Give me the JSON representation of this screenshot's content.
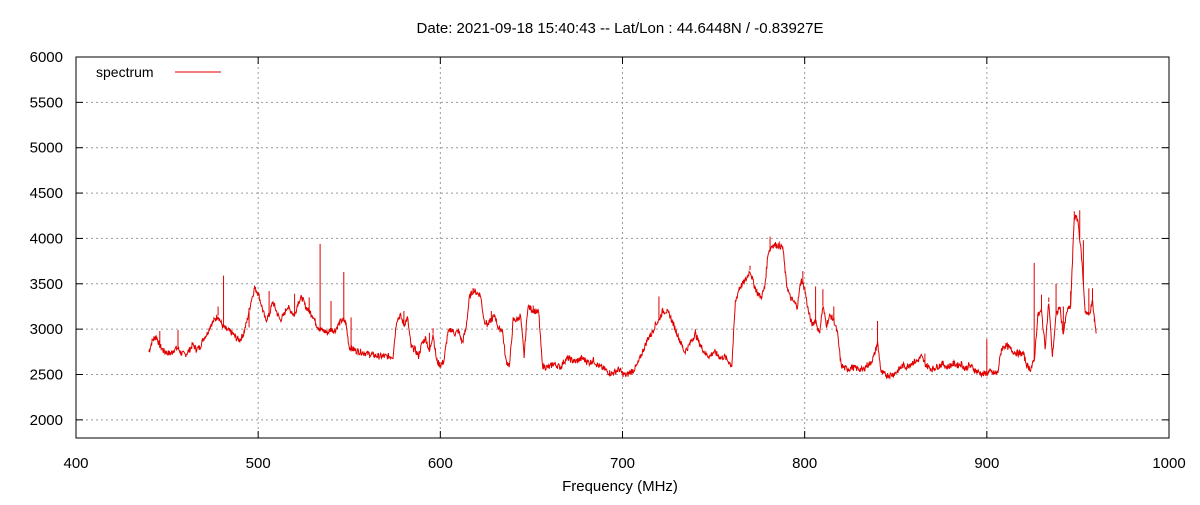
{
  "chart_data": {
    "type": "line",
    "title": "Date: 2021-09-18 15:40:43  --  Lat/Lon : 44.6448N / -0.83927E",
    "xlabel": "Frequency (MHz)",
    "ylabel": "",
    "xlim": [
      400,
      1000
    ],
    "ylim": [
      1800,
      6000
    ],
    "xticks": [
      400,
      500,
      600,
      700,
      800,
      900,
      1000
    ],
    "yticks": [
      2000,
      2500,
      3000,
      3500,
      4000,
      4500,
      5000,
      5500,
      6000
    ],
    "grid": true,
    "grid_style": "dotted",
    "legend_position": "top-left",
    "series": [
      {
        "name": "spectrum",
        "color": "#e00000",
        "points": [
          [
            440,
            2750
          ],
          [
            442,
            2880
          ],
          [
            444,
            2920
          ],
          [
            446,
            2820
          ],
          [
            448,
            2760
          ],
          [
            450,
            2740
          ],
          [
            452,
            2730
          ],
          [
            454,
            2780
          ],
          [
            456,
            2790
          ],
          [
            458,
            2730
          ],
          [
            460,
            2720
          ],
          [
            462,
            2760
          ],
          [
            464,
            2830
          ],
          [
            466,
            2780
          ],
          [
            468,
            2800
          ],
          [
            470,
            2900
          ],
          [
            472,
            2950
          ],
          [
            474,
            3050
          ],
          [
            476,
            3100
          ],
          [
            478,
            3150
          ],
          [
            480,
            3050
          ],
          [
            482,
            3000
          ],
          [
            484,
            2980
          ],
          [
            486,
            2950
          ],
          [
            488,
            2900
          ],
          [
            490,
            2880
          ],
          [
            492,
            2950
          ],
          [
            494,
            3100
          ],
          [
            496,
            3300
          ],
          [
            498,
            3450
          ],
          [
            500,
            3400
          ],
          [
            502,
            3250
          ],
          [
            504,
            3100
          ],
          [
            506,
            3150
          ],
          [
            508,
            3300
          ],
          [
            510,
            3200
          ],
          [
            512,
            3100
          ],
          [
            514,
            3150
          ],
          [
            516,
            3250
          ],
          [
            518,
            3200
          ],
          [
            520,
            3150
          ],
          [
            522,
            3300
          ],
          [
            524,
            3350
          ],
          [
            526,
            3250
          ],
          [
            528,
            3200
          ],
          [
            530,
            3150
          ],
          [
            532,
            3050
          ],
          [
            534,
            3000
          ],
          [
            536,
            2980
          ],
          [
            538,
            2960
          ],
          [
            540,
            3000
          ],
          [
            542,
            2980
          ],
          [
            544,
            3050
          ],
          [
            546,
            3100
          ],
          [
            548,
            3080
          ],
          [
            550,
            2800
          ],
          [
            552,
            2780
          ],
          [
            554,
            2760
          ],
          [
            556,
            2750
          ],
          [
            558,
            2740
          ],
          [
            560,
            2730
          ],
          [
            562,
            2720
          ],
          [
            564,
            2710
          ],
          [
            566,
            2700
          ],
          [
            568,
            2700
          ],
          [
            570,
            2700
          ],
          [
            572,
            2700
          ],
          [
            574,
            2700
          ],
          [
            576,
            3100
          ],
          [
            578,
            3150
          ],
          [
            580,
            3050
          ],
          [
            582,
            3120
          ],
          [
            584,
            2800
          ],
          [
            586,
            2780
          ],
          [
            588,
            2700
          ],
          [
            590,
            2850
          ],
          [
            592,
            2900
          ],
          [
            594,
            2750
          ],
          [
            596,
            2950
          ],
          [
            598,
            2650
          ],
          [
            600,
            2600
          ],
          [
            602,
            2650
          ],
          [
            604,
            2950
          ],
          [
            606,
            3000
          ],
          [
            608,
            2950
          ],
          [
            610,
            2980
          ],
          [
            612,
            2850
          ],
          [
            614,
            3000
          ],
          [
            616,
            3350
          ],
          [
            618,
            3430
          ],
          [
            620,
            3400
          ],
          [
            622,
            3380
          ],
          [
            624,
            3100
          ],
          [
            626,
            3050
          ],
          [
            628,
            3100
          ],
          [
            630,
            3150
          ],
          [
            632,
            3000
          ],
          [
            634,
            3000
          ],
          [
            636,
            2650
          ],
          [
            638,
            2600
          ],
          [
            640,
            3100
          ],
          [
            642,
            3100
          ],
          [
            644,
            3150
          ],
          [
            646,
            2700
          ],
          [
            648,
            3250
          ],
          [
            650,
            3220
          ],
          [
            652,
            3200
          ],
          [
            654,
            3180
          ],
          [
            656,
            2600
          ],
          [
            658,
            2580
          ],
          [
            660,
            2580
          ],
          [
            662,
            2620
          ],
          [
            664,
            2600
          ],
          [
            666,
            2580
          ],
          [
            668,
            2650
          ],
          [
            670,
            2680
          ],
          [
            672,
            2660
          ],
          [
            674,
            2640
          ],
          [
            676,
            2660
          ],
          [
            678,
            2680
          ],
          [
            680,
            2650
          ],
          [
            682,
            2630
          ],
          [
            684,
            2660
          ],
          [
            686,
            2610
          ],
          [
            688,
            2580
          ],
          [
            690,
            2560
          ],
          [
            692,
            2530
          ],
          [
            694,
            2510
          ],
          [
            696,
            2530
          ],
          [
            698,
            2560
          ],
          [
            700,
            2510
          ],
          [
            702,
            2490
          ],
          [
            704,
            2520
          ],
          [
            706,
            2550
          ],
          [
            708,
            2600
          ],
          [
            710,
            2700
          ],
          [
            712,
            2800
          ],
          [
            714,
            2900
          ],
          [
            716,
            2950
          ],
          [
            718,
            3050
          ],
          [
            720,
            3100
          ],
          [
            722,
            3200
          ],
          [
            724,
            3200
          ],
          [
            726,
            3150
          ],
          [
            728,
            3050
          ],
          [
            730,
            2950
          ],
          [
            732,
            2850
          ],
          [
            734,
            2750
          ],
          [
            736,
            2800
          ],
          [
            738,
            2880
          ],
          [
            740,
            2950
          ],
          [
            742,
            2850
          ],
          [
            744,
            2780
          ],
          [
            746,
            2720
          ],
          [
            748,
            2700
          ],
          [
            750,
            2750
          ],
          [
            752,
            2720
          ],
          [
            754,
            2680
          ],
          [
            756,
            2700
          ],
          [
            758,
            2650
          ],
          [
            760,
            2600
          ],
          [
            762,
            3300
          ],
          [
            764,
            3450
          ],
          [
            766,
            3500
          ],
          [
            768,
            3550
          ],
          [
            770,
            3650
          ],
          [
            772,
            3500
          ],
          [
            774,
            3400
          ],
          [
            776,
            3350
          ],
          [
            778,
            3450
          ],
          [
            780,
            3850
          ],
          [
            782,
            3920
          ],
          [
            784,
            3930
          ],
          [
            786,
            3920
          ],
          [
            788,
            3900
          ],
          [
            790,
            3500
          ],
          [
            792,
            3350
          ],
          [
            794,
            3300
          ],
          [
            796,
            3250
          ],
          [
            798,
            3550
          ],
          [
            800,
            3450
          ],
          [
            802,
            3200
          ],
          [
            804,
            3050
          ],
          [
            806,
            3100
          ],
          [
            808,
            2950
          ],
          [
            810,
            3250
          ],
          [
            812,
            3050
          ],
          [
            814,
            3150
          ],
          [
            816,
            3100
          ],
          [
            818,
            2950
          ],
          [
            820,
            2600
          ],
          [
            822,
            2570
          ],
          [
            824,
            2560
          ],
          [
            826,
            2580
          ],
          [
            828,
            2570
          ],
          [
            830,
            2560
          ],
          [
            832,
            2550
          ],
          [
            834,
            2600
          ],
          [
            836,
            2620
          ],
          [
            838,
            2700
          ],
          [
            840,
            2850
          ],
          [
            842,
            2520
          ],
          [
            844,
            2500
          ],
          [
            846,
            2490
          ],
          [
            848,
            2500
          ],
          [
            850,
            2520
          ],
          [
            852,
            2560
          ],
          [
            854,
            2600
          ],
          [
            856,
            2580
          ],
          [
            858,
            2620
          ],
          [
            860,
            2640
          ],
          [
            862,
            2650
          ],
          [
            864,
            2700
          ],
          [
            866,
            2620
          ],
          [
            868,
            2580
          ],
          [
            870,
            2560
          ],
          [
            872,
            2580
          ],
          [
            874,
            2600
          ],
          [
            876,
            2620
          ],
          [
            878,
            2580
          ],
          [
            880,
            2600
          ],
          [
            882,
            2620
          ],
          [
            884,
            2600
          ],
          [
            886,
            2620
          ],
          [
            888,
            2560
          ],
          [
            890,
            2600
          ],
          [
            892,
            2580
          ],
          [
            894,
            2540
          ],
          [
            896,
            2520
          ],
          [
            898,
            2500
          ],
          [
            900,
            2520
          ],
          [
            902,
            2530
          ],
          [
            904,
            2510
          ],
          [
            906,
            2520
          ],
          [
            908,
            2780
          ],
          [
            910,
            2820
          ],
          [
            912,
            2800
          ],
          [
            914,
            2760
          ],
          [
            916,
            2740
          ],
          [
            918,
            2730
          ],
          [
            920,
            2730
          ],
          [
            922,
            2600
          ],
          [
            924,
            2560
          ],
          [
            926,
            2650
          ],
          [
            928,
            3150
          ],
          [
            930,
            3200
          ],
          [
            932,
            2800
          ],
          [
            934,
            3300
          ],
          [
            936,
            2700
          ],
          [
            938,
            3150
          ],
          [
            940,
            3250
          ],
          [
            942,
            2950
          ],
          [
            944,
            3200
          ],
          [
            946,
            3250
          ],
          [
            948,
            4250
          ],
          [
            950,
            4200
          ],
          [
            952,
            3800
          ],
          [
            954,
            3200
          ],
          [
            956,
            3150
          ],
          [
            958,
            3300
          ],
          [
            960,
            2950
          ]
        ],
        "spikes": [
          [
            446,
            2980
          ],
          [
            456,
            2990
          ],
          [
            478,
            3250
          ],
          [
            481,
            3590
          ],
          [
            495,
            3020
          ],
          [
            498,
            3480
          ],
          [
            506,
            3420
          ],
          [
            520,
            3390
          ],
          [
            528,
            3350
          ],
          [
            534,
            3940
          ],
          [
            540,
            3310
          ],
          [
            547,
            3630
          ],
          [
            551,
            3130
          ],
          [
            580,
            3200
          ],
          [
            594,
            2960
          ],
          [
            596,
            3010
          ],
          [
            618,
            3450
          ],
          [
            628,
            3200
          ],
          [
            651,
            3260
          ],
          [
            705,
            2560
          ],
          [
            720,
            3360
          ],
          [
            740,
            3000
          ],
          [
            770,
            3700
          ],
          [
            781,
            4020
          ],
          [
            799,
            3640
          ],
          [
            806,
            3470
          ],
          [
            810,
            3440
          ],
          [
            816,
            3250
          ],
          [
            840,
            3090
          ],
          [
            866,
            2730
          ],
          [
            890,
            2620
          ],
          [
            900,
            2890
          ],
          [
            926,
            3730
          ],
          [
            930,
            3380
          ],
          [
            934,
            3350
          ],
          [
            938,
            3500
          ],
          [
            942,
            3250
          ],
          [
            946,
            3420
          ],
          [
            948,
            4300
          ],
          [
            951,
            4310
          ],
          [
            953,
            3980
          ],
          [
            956,
            3450
          ],
          [
            958,
            3450
          ],
          [
            959,
            3080
          ]
        ]
      }
    ]
  }
}
